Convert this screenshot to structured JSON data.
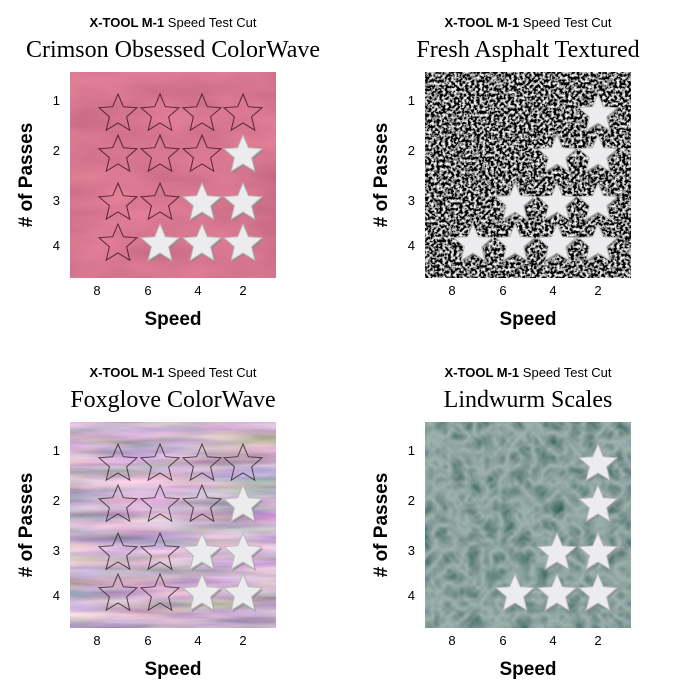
{
  "panels": [
    {
      "brand": "X-TOOL M-1",
      "subtitle": "Speed Test Cut",
      "title": "Crimson Obsessed ColorWave",
      "texture": "crimson",
      "x_label": "Speed",
      "x_ticks": [
        "8",
        "6",
        "4",
        "2"
      ],
      "y_label": "# of Passes",
      "y_ticks": [
        "1",
        "2",
        "3",
        "4"
      ],
      "cells": [
        [
          "outline",
          "outline",
          "outline",
          "outline"
        ],
        [
          "outline",
          "outline",
          "outline",
          "cut"
        ],
        [
          "outline",
          "outline",
          "cut",
          "cut"
        ],
        [
          "outline",
          "cut",
          "cut",
          "cut"
        ]
      ]
    },
    {
      "brand": "X-TOOL M-1",
      "subtitle": "Speed Test Cut",
      "title": "Fresh Asphalt Textured",
      "texture": "asphalt",
      "x_label": "Speed",
      "x_ticks": [
        "8",
        "6",
        "4",
        "2"
      ],
      "y_label": "# of Passes",
      "y_ticks": [
        "1",
        "2",
        "3",
        "4"
      ],
      "cells": [
        [
          "hidden",
          "hidden",
          "hidden",
          "cut"
        ],
        [
          "hidden",
          "hidden",
          "cut",
          "cut"
        ],
        [
          "hidden",
          "cut",
          "cut",
          "cut"
        ],
        [
          "cut",
          "cut",
          "cut",
          "cut"
        ]
      ]
    },
    {
      "brand": "X-TOOL M-1",
      "subtitle": "Speed Test Cut",
      "title": "Foxglove ColorWave",
      "texture": "foxglove",
      "x_label": "Speed",
      "x_ticks": [
        "8",
        "6",
        "4",
        "2"
      ],
      "y_label": "# of Passes",
      "y_ticks": [
        "1",
        "2",
        "3",
        "4"
      ],
      "cells": [
        [
          "outline",
          "outline",
          "outline",
          "outline"
        ],
        [
          "outline",
          "outline",
          "outline",
          "cut"
        ],
        [
          "outline",
          "outline",
          "cut",
          "cut"
        ],
        [
          "outline",
          "outline",
          "cut",
          "cut"
        ]
      ]
    },
    {
      "brand": "X-TOOL M-1",
      "subtitle": "Speed Test Cut",
      "title": "Lindwurm Scales",
      "texture": "lindwurm",
      "x_label": "Speed",
      "x_ticks": [
        "8",
        "6",
        "4",
        "2"
      ],
      "y_label": "# of Passes",
      "y_ticks": [
        "1",
        "2",
        "3",
        "4"
      ],
      "cells": [
        [
          "hidden",
          "hidden",
          "hidden",
          "cut"
        ],
        [
          "hidden",
          "hidden",
          "hidden",
          "cut"
        ],
        [
          "hidden",
          "hidden",
          "cut",
          "cut"
        ],
        [
          "hidden",
          "cut",
          "cut",
          "cut"
        ]
      ]
    }
  ]
}
